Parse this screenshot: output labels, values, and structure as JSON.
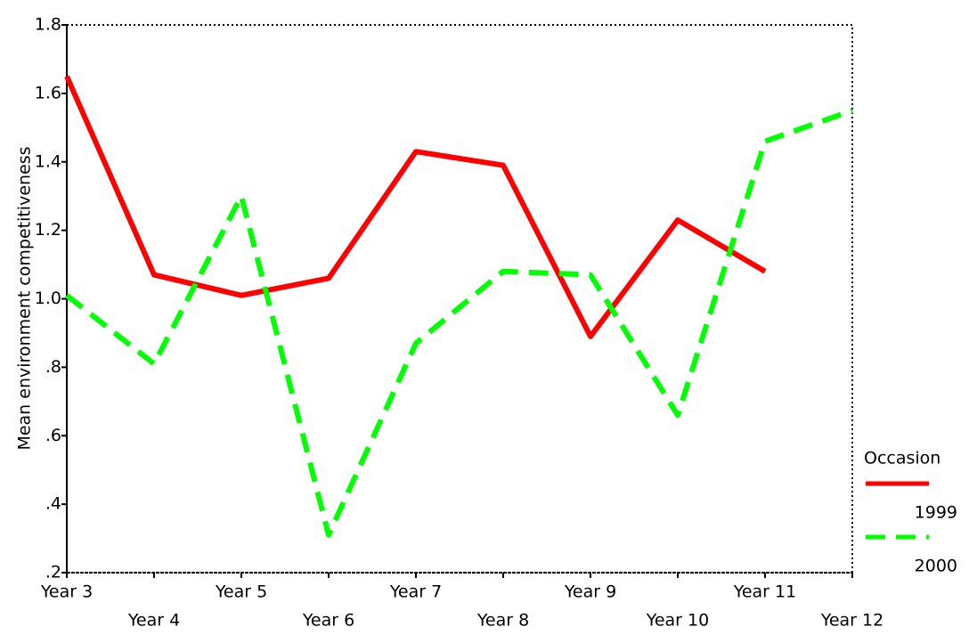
{
  "chart_data": {
    "type": "line",
    "y_label": "Mean environment competitiveness",
    "categories": [
      "Year 3",
      "Year 4",
      "Year 5",
      "Year 6",
      "Year 7",
      "Year 8",
      "Year 9",
      "Year 10",
      "Year 11",
      "Year 12"
    ],
    "series": [
      {
        "name": "1999",
        "color": "#ff0000",
        "dash": false,
        "values": [
          1.65,
          1.07,
          1.01,
          1.06,
          1.43,
          1.39,
          0.89,
          1.23,
          1.08,
          null
        ]
      },
      {
        "name": "2000",
        "color": "#00ff00",
        "dash": true,
        "values": [
          1.01,
          0.81,
          1.3,
          0.31,
          0.87,
          1.08,
          1.07,
          0.66,
          1.46,
          1.55
        ]
      }
    ],
    "ylim": [
      0.2,
      1.8
    ],
    "yticks": [
      {
        "value": 0.2,
        "label": ".2"
      },
      {
        "value": 0.4,
        "label": ".4"
      },
      {
        "value": 0.6,
        "label": ".6"
      },
      {
        "value": 0.8,
        "label": ".8"
      },
      {
        "value": 1,
        "label": "1.0"
      },
      1.2,
      1.4,
      1.6,
      1.8
    ],
    "legend_title": "Occasion",
    "grid": false
  }
}
